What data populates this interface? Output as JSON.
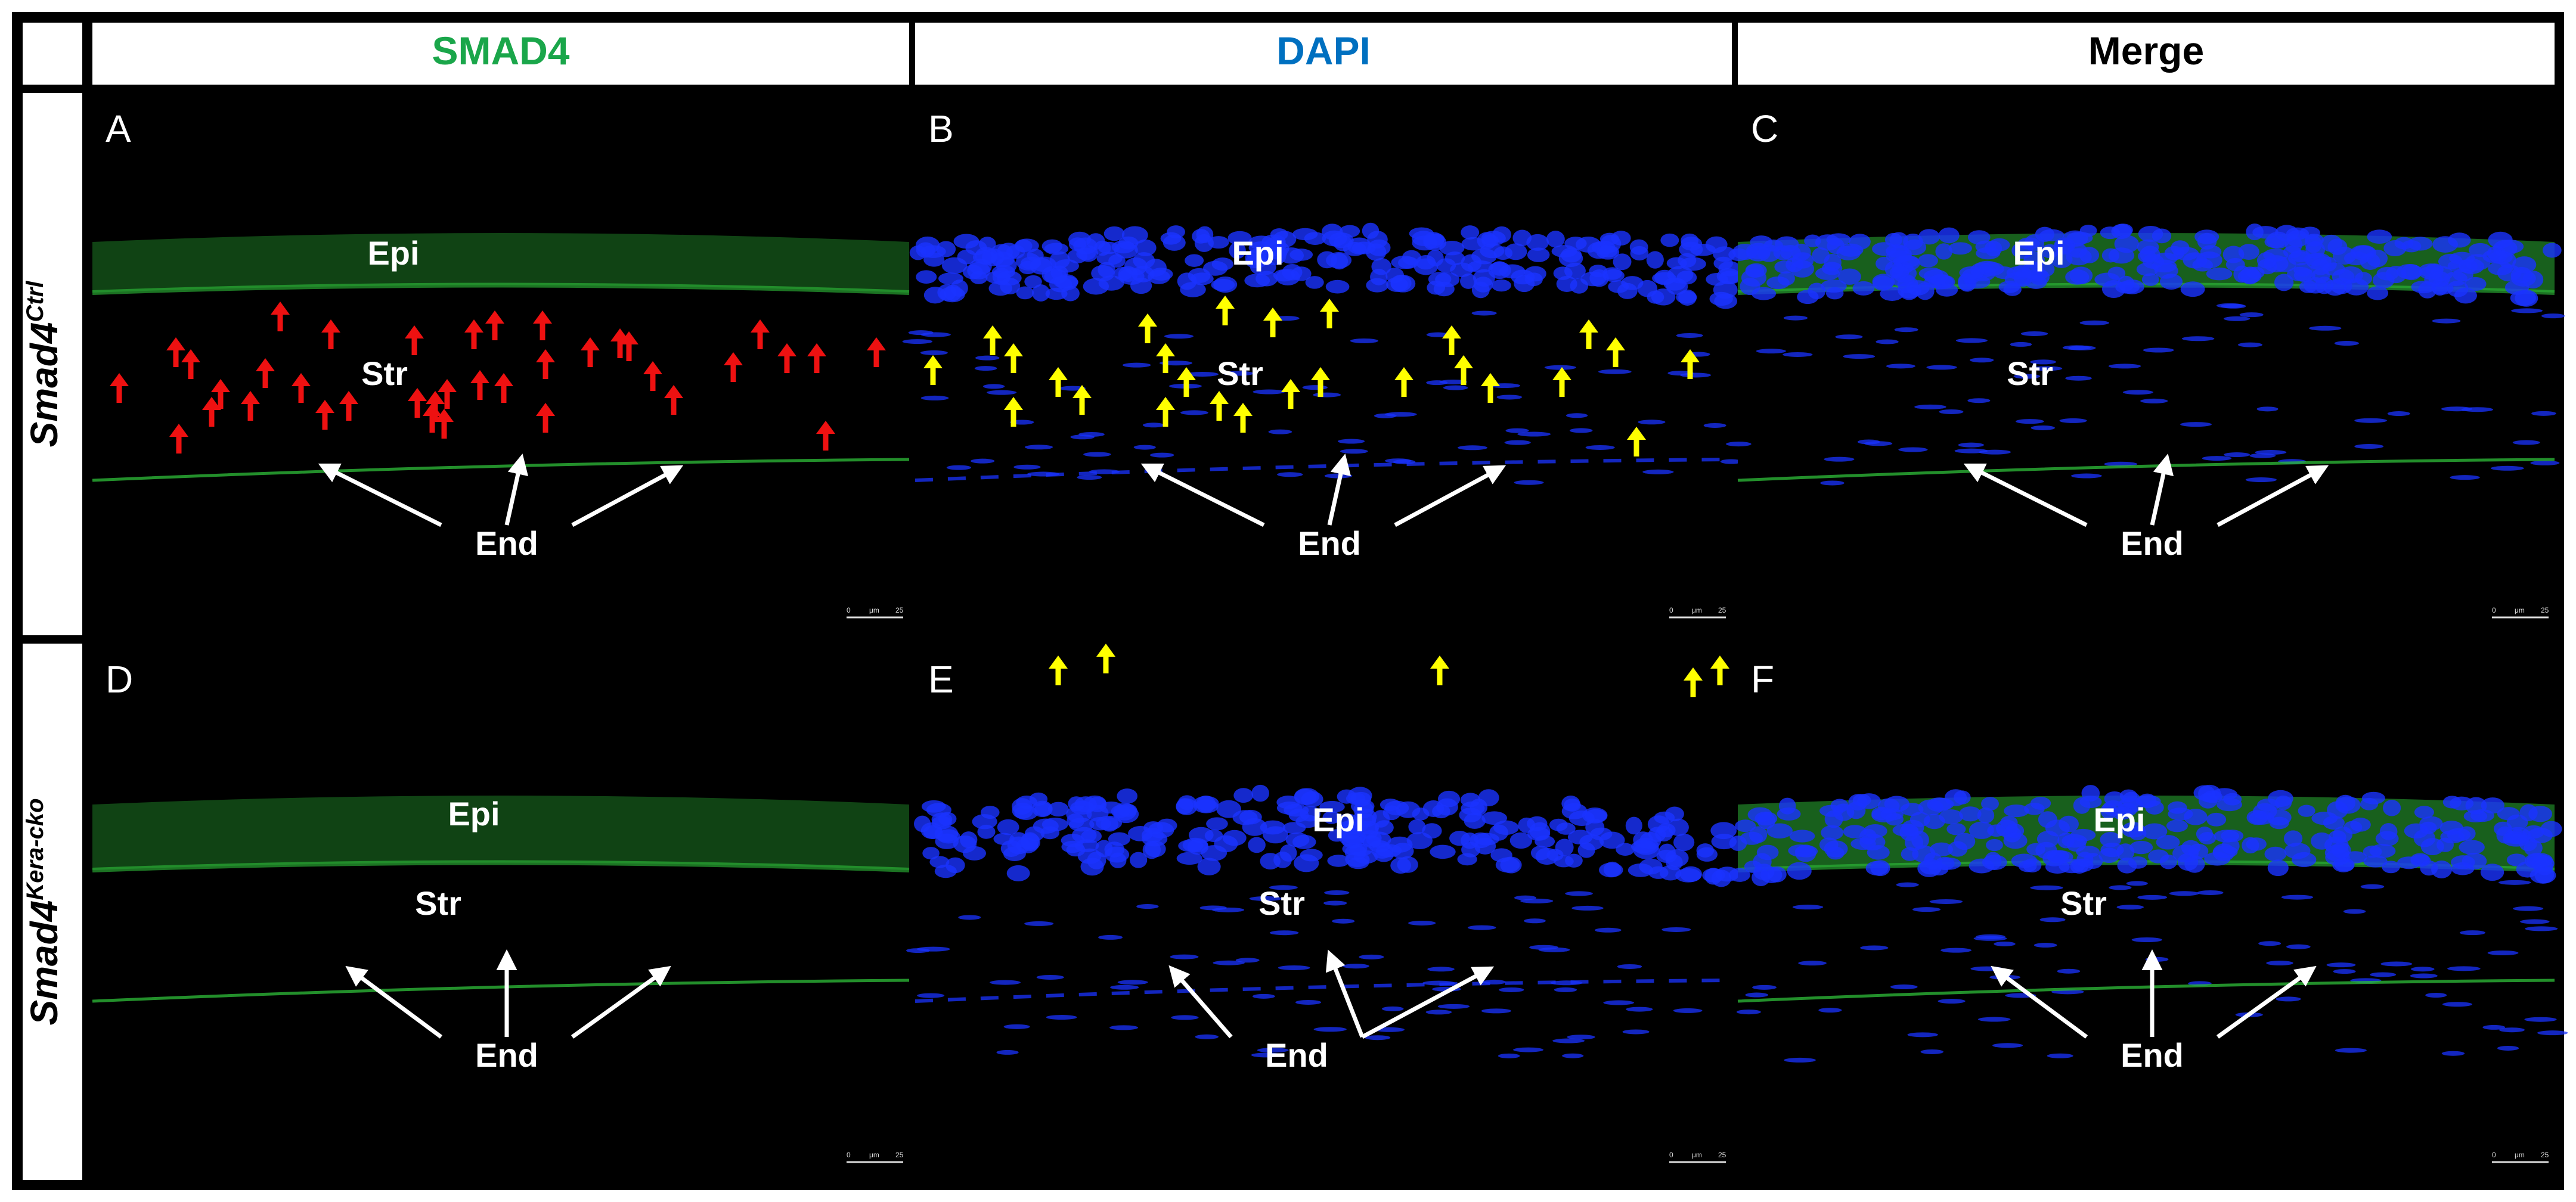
{
  "columns": [
    {
      "label": "SMAD4",
      "color": "#1aa64a"
    },
    {
      "label": "DAPI",
      "color": "#0070c0"
    },
    {
      "label": "Merge",
      "color": "#000000"
    }
  ],
  "rows": [
    {
      "gene": "Smad4",
      "superscript": "Ctrl"
    },
    {
      "gene": "Smad4",
      "superscript": "Kera-cko"
    }
  ],
  "panels": [
    {
      "letter": "A",
      "channel": "smad4",
      "arrow_color": "#ee1111",
      "labels": {
        "epi": "Epi",
        "str": "Str",
        "end": "End"
      }
    },
    {
      "letter": "B",
      "channel": "dapi",
      "arrow_color": "#ffff00",
      "labels": {
        "epi": "Epi",
        "str": "Str",
        "end": "End"
      }
    },
    {
      "letter": "C",
      "channel": "merge",
      "arrow_color": "",
      "labels": {
        "epi": "Epi",
        "str": "Str",
        "end": "End"
      }
    },
    {
      "letter": "D",
      "channel": "smad4",
      "arrow_color": "",
      "labels": {
        "epi": "Epi",
        "str": "Str",
        "end": "End"
      }
    },
    {
      "letter": "E",
      "channel": "dapi",
      "arrow_color": "#ffff00",
      "labels": {
        "epi": "Epi",
        "str": "Str",
        "end": "End"
      }
    },
    {
      "letter": "F",
      "channel": "merge",
      "arrow_color": "",
      "labels": {
        "epi": "Epi",
        "str": "Str",
        "end": "End"
      }
    }
  ],
  "scale_bar": {
    "start": "0",
    "unit": "μm",
    "end": "25"
  },
  "colors": {
    "green_stain": "#2fbf3a",
    "blue_stain": "#1a33ff",
    "label": "#ffffff"
  }
}
